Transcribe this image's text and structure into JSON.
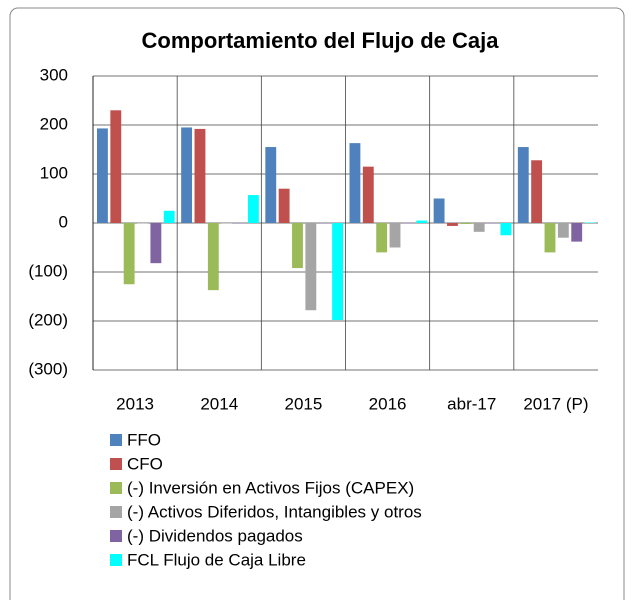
{
  "chart_data": {
    "type": "bar",
    "title": "Comportamiento del Flujo de Caja",
    "categories": [
      "2013",
      "2014",
      "2015",
      "2016",
      "abr-17",
      "2017 (P)"
    ],
    "series": [
      {
        "name": "FFO",
        "color": "#4f81bd",
        "values": [
          193,
          195,
          155,
          163,
          50,
          155
        ]
      },
      {
        "name": "CFO",
        "color": "#c0504d",
        "values": [
          230,
          192,
          70,
          115,
          -6,
          128
        ]
      },
      {
        "name": "(-) Inversión en Activos Fijos (CAPEX)",
        "color": "#9bbb59",
        "values": [
          -125,
          -137,
          -92,
          -60,
          -2,
          -60
        ]
      },
      {
        "name": "(-) Activos Diferidos, Intangibles y otros",
        "color": "#a5a5a5",
        "values": [
          0,
          0,
          -178,
          -50,
          -18,
          -30
        ]
      },
      {
        "name": "(-) Dividendos pagados",
        "color": "#8064a2",
        "values": [
          -82,
          0,
          0,
          0,
          0,
          -38
        ]
      },
      {
        "name": "FCL Flujo de Caja Libre",
        "color": "#00ffff",
        "values": [
          25,
          57,
          -198,
          5,
          -25,
          1
        ]
      }
    ],
    "ylim": [
      -300,
      300
    ],
    "yticks": [
      {
        "value": -300,
        "label": "(300)"
      },
      {
        "value": -200,
        "label": "(200)"
      },
      {
        "value": -100,
        "label": "(100)"
      },
      0,
      100,
      200,
      300
    ],
    "grid": true
  }
}
